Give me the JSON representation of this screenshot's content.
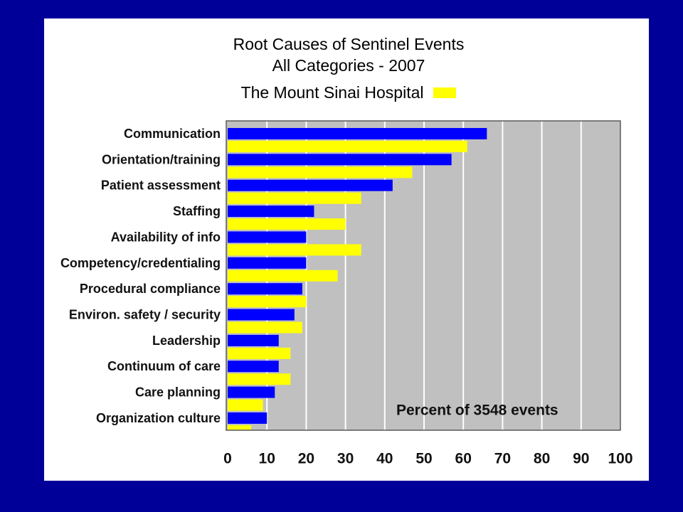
{
  "page": {
    "background_color": "#000099",
    "panel_color": "#ffffff"
  },
  "chart_data": {
    "type": "bar",
    "horizontal": true,
    "title": "Root Causes of Sentinel Events",
    "subtitle": "All Categories - 2007",
    "categories": [
      "Communication",
      "Orientation/training",
      "Patient assessment",
      "Staffing",
      "Availability of info",
      "Competency/credentialing",
      "Procedural compliance",
      "Environ. safety / security",
      "Leadership",
      "Continuum of care",
      "Care planning",
      "Organization culture"
    ],
    "series": [
      {
        "color": "#0000ff",
        "values": [
          66,
          57,
          42,
          22,
          20,
          20,
          19,
          17,
          13,
          13,
          12,
          10
        ]
      },
      {
        "name": "The Mount Sinai Hospital",
        "color": "#ffff00",
        "values": [
          61,
          47,
          34,
          30,
          34,
          28,
          20,
          19,
          16,
          16,
          9,
          6
        ]
      }
    ],
    "xlim": [
      0,
      100
    ],
    "xticks": [
      0,
      10,
      20,
      30,
      40,
      50,
      60,
      70,
      80,
      90,
      100
    ],
    "grid": true,
    "grid_color": "#ffffff",
    "plot_background": "#c0c0c0",
    "legend_position": "top",
    "annotation": "Percent of 3548 events"
  }
}
